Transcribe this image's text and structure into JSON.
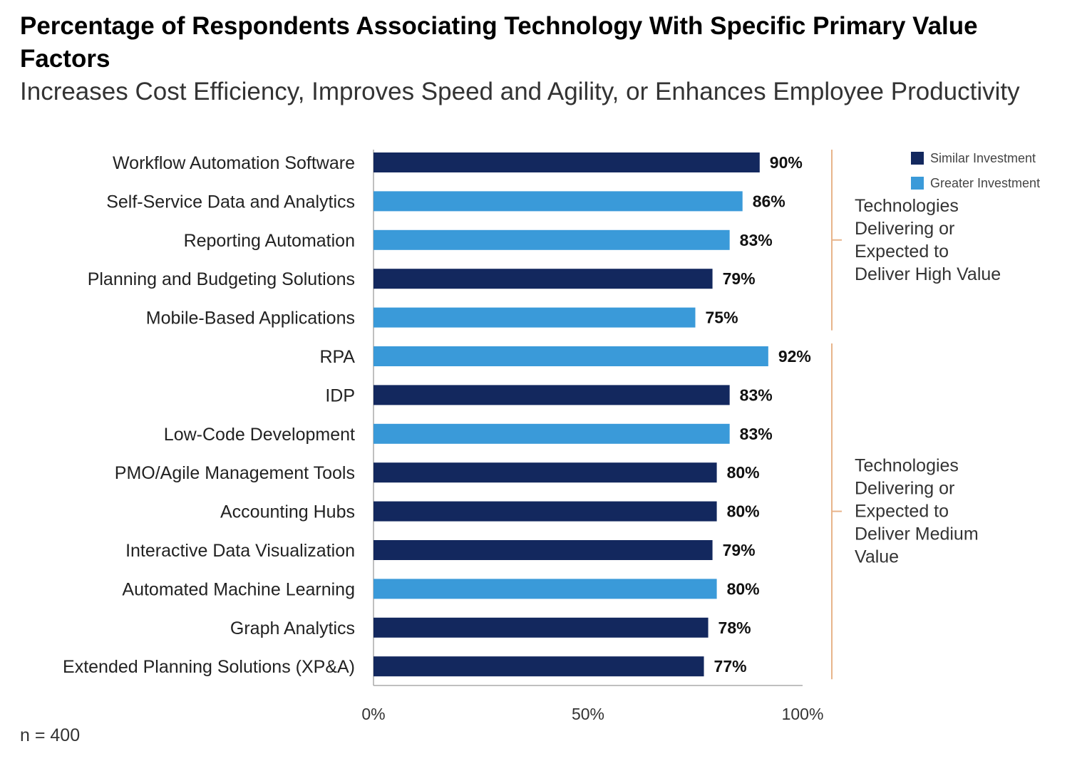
{
  "chart_data": {
    "type": "bar",
    "orientation": "horizontal",
    "title": "Percentage of Respondents Associating Technology With Specific Primary Value Factors",
    "subtitle": "Increases Cost Efficiency, Improves Speed and Agility, or Enhances Employee Productivity",
    "xlim": [
      0,
      100
    ],
    "x_ticks": [
      "0%",
      "50%",
      "100%"
    ],
    "legend": [
      {
        "name": "Similar Investment",
        "color": "#13285e"
      },
      {
        "name": "Greater Investment",
        "color": "#3a9ad9"
      }
    ],
    "groups": [
      {
        "label": [
          "Technologies",
          "Delivering or",
          "Expected to",
          "Deliver High Value"
        ],
        "start": 0,
        "end": 4
      },
      {
        "label": [
          "Technologies",
          "Delivering or",
          "Expected to",
          "Deliver Medium",
          "Value"
        ],
        "start": 5,
        "end": 13
      }
    ],
    "bars": [
      {
        "category": "Workflow Automation Software",
        "value": 90,
        "label": "90%",
        "series": "Similar Investment"
      },
      {
        "category": "Self-Service Data and Analytics",
        "value": 86,
        "label": "86%",
        "series": "Greater Investment"
      },
      {
        "category": "Reporting Automation",
        "value": 83,
        "label": "83%",
        "series": "Greater Investment"
      },
      {
        "category": "Planning and Budgeting Solutions",
        "value": 79,
        "label": "79%",
        "series": "Similar Investment"
      },
      {
        "category": "Mobile-Based Applications",
        "value": 75,
        "label": "75%",
        "series": "Greater Investment"
      },
      {
        "category": "RPA",
        "value": 92,
        "label": "92%",
        "series": "Greater Investment"
      },
      {
        "category": "IDP",
        "value": 83,
        "label": "83%",
        "series": "Similar Investment"
      },
      {
        "category": "Low-Code Development",
        "value": 83,
        "label": "83%",
        "series": "Greater Investment"
      },
      {
        "category": "PMO/Agile Management Tools",
        "value": 80,
        "label": "80%",
        "series": "Similar Investment"
      },
      {
        "category": "Accounting Hubs",
        "value": 80,
        "label": "80%",
        "series": "Similar Investment"
      },
      {
        "category": "Interactive Data Visualization",
        "value": 79,
        "label": "79%",
        "series": "Similar Investment"
      },
      {
        "category": "Automated Machine Learning",
        "value": 80,
        "label": "80%",
        "series": "Greater Investment"
      },
      {
        "category": "Graph Analytics",
        "value": 78,
        "label": "78%",
        "series": "Similar Investment"
      },
      {
        "category": "Extended Planning Solutions (XP&A)",
        "value": 77,
        "label": "77%",
        "series": "Similar Investment"
      }
    ],
    "footnote": "n = 400"
  }
}
